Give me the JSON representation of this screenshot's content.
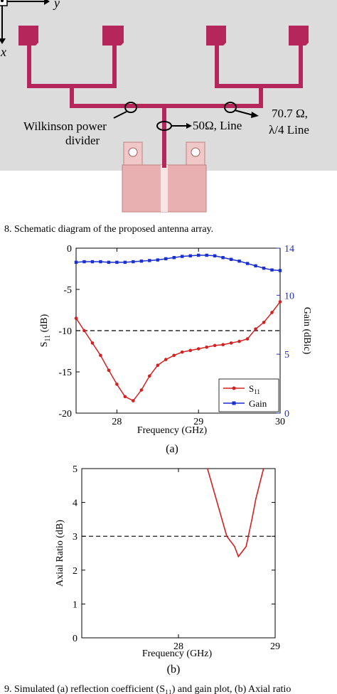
{
  "schematic": {
    "axis_y": "y",
    "axis_x": "x",
    "wilkinson_line1": "Wilkinson power",
    "wilkinson_line2": "divider",
    "line50": "50Ω, Line",
    "line70_1": "70.7 Ω,",
    "line70_2": "λ/4 Line",
    "colors": {
      "background": "#dcdcdc",
      "feed": "#b5265b",
      "connector": "#e8b0b0"
    }
  },
  "caption8": "8. Schematic diagram of the proposed antenna array.",
  "subcaption_a": "(a)",
  "subcaption_b": "(b)",
  "caption9": "9. Simulated (a) reflection coefficient (S₁₁) and gain plot, (b) Axial ratio",
  "chart_data": [
    {
      "type": "line",
      "xlabel": "Frequency (GHz)",
      "ylabel": "S11 (dB)",
      "y2label": "Gain (dBic)",
      "xlim": [
        27.5,
        30
      ],
      "ylim": [
        -20,
        0
      ],
      "y2lim": [
        0,
        14
      ],
      "xticks": [
        28,
        29,
        30
      ],
      "yticks": [
        0,
        -5,
        -10,
        -15,
        -20
      ],
      "y2ticks": [
        14,
        10,
        5,
        0
      ],
      "reference_line": -10,
      "legend_position": "bottom-right",
      "grid": false,
      "series": [
        {
          "name": "S11",
          "axis": "left",
          "color": "#d42020",
          "marker": "circle",
          "x": [
            27.5,
            27.6,
            27.7,
            27.8,
            27.9,
            28.0,
            28.1,
            28.2,
            28.3,
            28.4,
            28.5,
            28.6,
            28.7,
            28.8,
            28.9,
            29.0,
            29.1,
            29.2,
            29.3,
            29.4,
            29.5,
            29.6,
            29.7,
            29.8,
            29.9,
            30.0
          ],
          "y": [
            -8.5,
            -10.0,
            -11.5,
            -13.0,
            -14.8,
            -16.5,
            -18.0,
            -18.5,
            -17.2,
            -15.5,
            -14.2,
            -13.5,
            -13.0,
            -12.6,
            -12.4,
            -12.2,
            -12.0,
            -11.8,
            -11.7,
            -11.5,
            -11.3,
            -11.0,
            -9.8,
            -9.0,
            -7.8,
            -6.5
          ]
        },
        {
          "name": "Gain",
          "axis": "right",
          "color": "#1a2fd0",
          "marker": "square",
          "x": [
            27.5,
            27.6,
            27.7,
            27.8,
            27.9,
            28.0,
            28.1,
            28.2,
            28.3,
            28.4,
            28.5,
            28.6,
            28.7,
            28.8,
            28.9,
            29.0,
            29.1,
            29.2,
            29.3,
            29.4,
            29.5,
            29.6,
            29.7,
            29.8,
            29.9,
            30.0
          ],
          "y": [
            12.8,
            12.85,
            12.85,
            12.85,
            12.8,
            12.8,
            12.8,
            12.85,
            12.9,
            12.95,
            13.0,
            13.1,
            13.2,
            13.3,
            13.35,
            13.4,
            13.4,
            13.35,
            13.2,
            13.05,
            12.9,
            12.7,
            12.5,
            12.3,
            12.15,
            12.1
          ]
        }
      ]
    },
    {
      "type": "line",
      "xlabel": "Frequency (GHz)",
      "ylabel": "Axial Ratio (dB)",
      "xlim": [
        27,
        29
      ],
      "ylim": [
        0,
        5
      ],
      "xticks": [
        28,
        29
      ],
      "yticks": [
        5,
        4,
        3,
        2,
        1,
        0
      ],
      "reference_line": 3,
      "grid": false,
      "series": [
        {
          "color": "#d42020",
          "x": [
            28.3,
            28.35,
            28.42,
            28.5,
            28.58,
            28.62,
            28.7,
            28.76,
            28.8,
            28.88
          ],
          "y": [
            5.0,
            4.5,
            3.8,
            3.0,
            2.7,
            2.4,
            2.7,
            3.5,
            4.1,
            5.0
          ]
        }
      ]
    }
  ]
}
